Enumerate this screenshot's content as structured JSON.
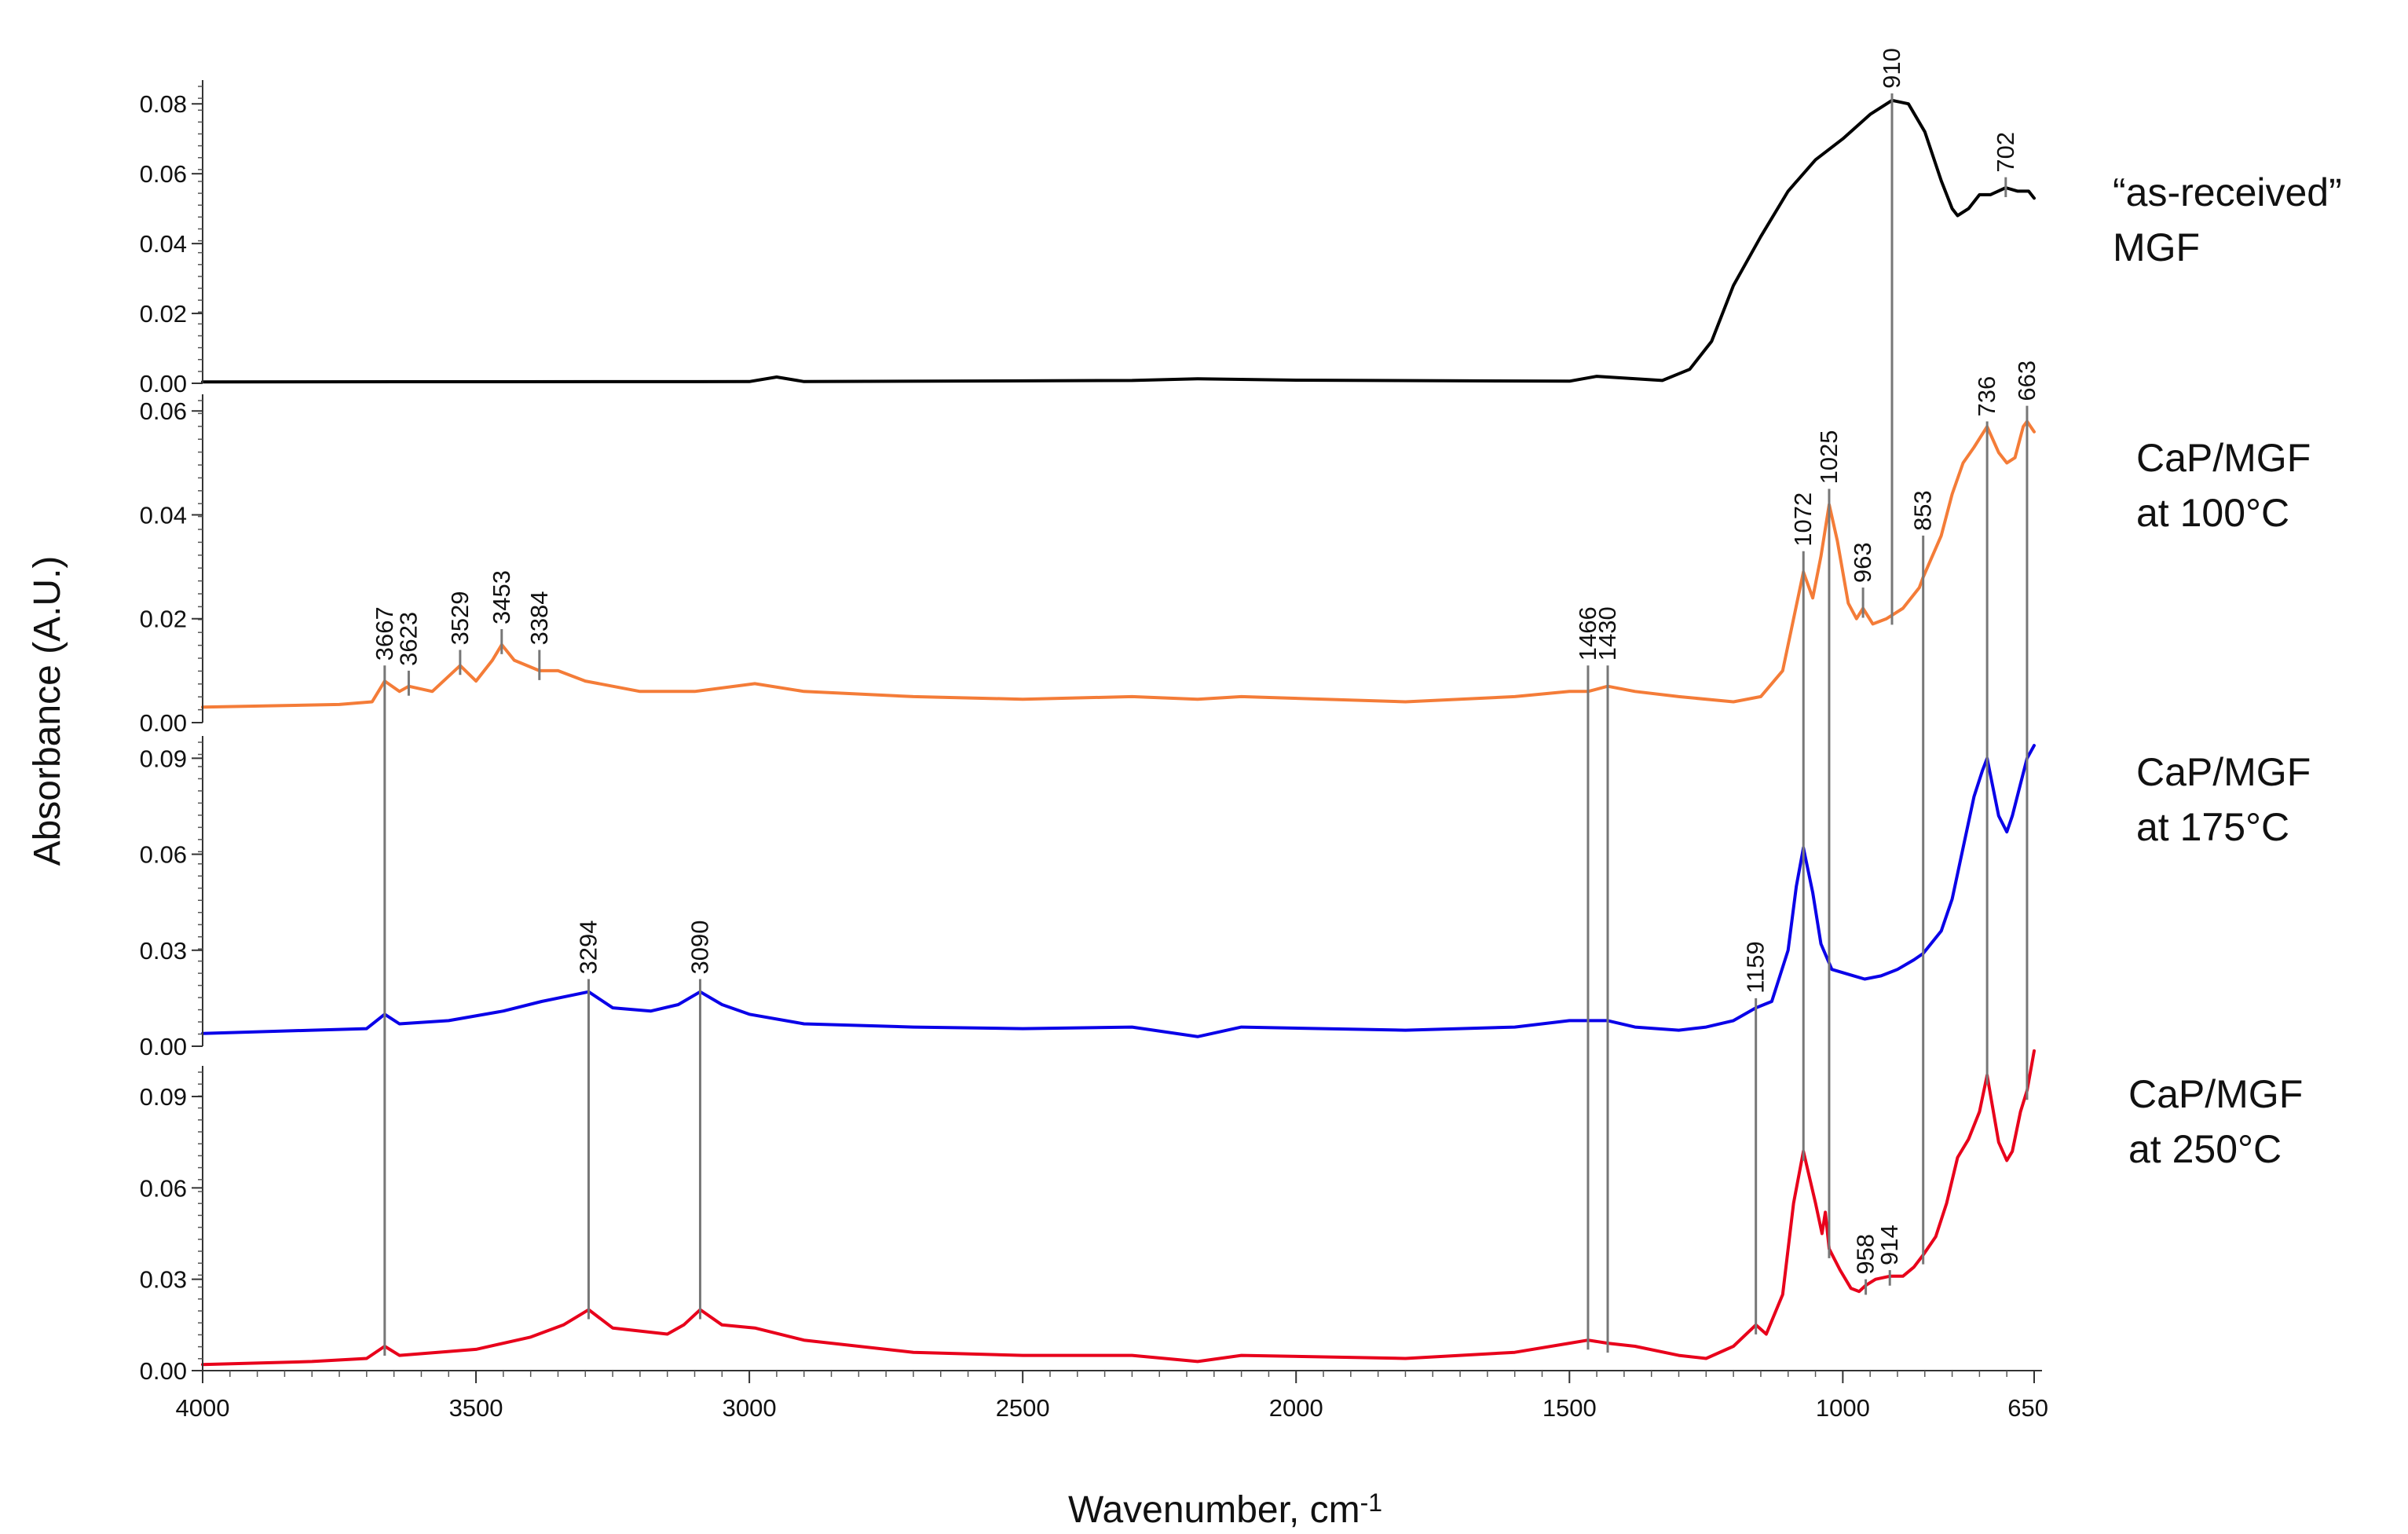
{
  "chart_data": {
    "type": "line",
    "xlabel_main": "Wavenumber,  cm",
    "xlabel_sup": "-1",
    "ylabel": "Absorbance (A.U.)",
    "xlim": [
      4000,
      650
    ],
    "x_reversed": true,
    "x_ticks": [
      4000,
      3500,
      3000,
      2500,
      2000,
      1500,
      1000,
      650
    ],
    "colors": {
      "black": "#000000",
      "orange": "#f47c38",
      "blue": "#0a00e8",
      "red": "#e8001b",
      "marker": "#777777"
    },
    "panels": [
      {
        "label_lines": [
          "“as-received”",
          "MGF"
        ],
        "color": "#000000",
        "ylim": [
          0,
          0.085
        ],
        "y_ticks": [
          "0.00",
          "0.02",
          "0.04",
          "0.06",
          "0.08"
        ],
        "points": [
          [
            4000,
            0.0004
          ],
          [
            3000,
            0.0005
          ],
          [
            2950,
            0.0018
          ],
          [
            2900,
            0.0005
          ],
          [
            2300,
            0.0008
          ],
          [
            2180,
            0.0013
          ],
          [
            2000,
            0.0009
          ],
          [
            1500,
            0.0006
          ],
          [
            1450,
            0.002
          ],
          [
            1330,
            0.0008
          ],
          [
            1280,
            0.004
          ],
          [
            1240,
            0.012
          ],
          [
            1200,
            0.028
          ],
          [
            1150,
            0.042
          ],
          [
            1100,
            0.055
          ],
          [
            1050,
            0.064
          ],
          [
            1000,
            0.07
          ],
          [
            950,
            0.077
          ],
          [
            910,
            0.081
          ],
          [
            880,
            0.08
          ],
          [
            850,
            0.072
          ],
          [
            820,
            0.058
          ],
          [
            800,
            0.05
          ],
          [
            790,
            0.048
          ],
          [
            770,
            0.05
          ],
          [
            750,
            0.054
          ],
          [
            730,
            0.054
          ],
          [
            702,
            0.056
          ],
          [
            680,
            0.055
          ],
          [
            660,
            0.055
          ],
          [
            650,
            0.053
          ]
        ]
      },
      {
        "label_lines": [
          "CaP/MGF",
          "at 100°C"
        ],
        "color": "#f47c38",
        "ylim": [
          0,
          0.062
        ],
        "y_ticks": [
          "0.00",
          "0.02",
          "0.04",
          "0.06"
        ],
        "points": [
          [
            4000,
            0.003
          ],
          [
            3750,
            0.0035
          ],
          [
            3690,
            0.004
          ],
          [
            3667,
            0.008
          ],
          [
            3640,
            0.006
          ],
          [
            3623,
            0.007
          ],
          [
            3580,
            0.006
          ],
          [
            3529,
            0.011
          ],
          [
            3500,
            0.008
          ],
          [
            3470,
            0.012
          ],
          [
            3453,
            0.015
          ],
          [
            3430,
            0.012
          ],
          [
            3384,
            0.01
          ],
          [
            3350,
            0.01
          ],
          [
            3300,
            0.008
          ],
          [
            3200,
            0.006
          ],
          [
            3100,
            0.006
          ],
          [
            2990,
            0.0075
          ],
          [
            2900,
            0.006
          ],
          [
            2700,
            0.005
          ],
          [
            2500,
            0.0045
          ],
          [
            2300,
            0.005
          ],
          [
            2180,
            0.0045
          ],
          [
            2100,
            0.005
          ],
          [
            1800,
            0.004
          ],
          [
            1600,
            0.005
          ],
          [
            1500,
            0.006
          ],
          [
            1466,
            0.006
          ],
          [
            1430,
            0.007
          ],
          [
            1380,
            0.006
          ],
          [
            1300,
            0.005
          ],
          [
            1200,
            0.004
          ],
          [
            1150,
            0.005
          ],
          [
            1110,
            0.01
          ],
          [
            1090,
            0.02
          ],
          [
            1072,
            0.029
          ],
          [
            1055,
            0.024
          ],
          [
            1040,
            0.032
          ],
          [
            1025,
            0.042
          ],
          [
            1010,
            0.035
          ],
          [
            990,
            0.023
          ],
          [
            975,
            0.02
          ],
          [
            963,
            0.022
          ],
          [
            945,
            0.019
          ],
          [
            920,
            0.02
          ],
          [
            890,
            0.022
          ],
          [
            860,
            0.026
          ],
          [
            853,
            0.028
          ],
          [
            820,
            0.036
          ],
          [
            800,
            0.044
          ],
          [
            780,
            0.05
          ],
          [
            760,
            0.053
          ],
          [
            736,
            0.057
          ],
          [
            715,
            0.052
          ],
          [
            700,
            0.05
          ],
          [
            685,
            0.051
          ],
          [
            670,
            0.057
          ],
          [
            663,
            0.058
          ],
          [
            650,
            0.056
          ]
        ]
      },
      {
        "label_lines": [
          "CaP/MGF",
          "at 175°C"
        ],
        "color": "#0a00e8",
        "ylim": [
          0,
          0.095
        ],
        "y_ticks": [
          "0.00",
          "0.03",
          "0.06",
          "0.09"
        ],
        "points": [
          [
            4000,
            0.004
          ],
          [
            3800,
            0.005
          ],
          [
            3700,
            0.0055
          ],
          [
            3667,
            0.01
          ],
          [
            3640,
            0.007
          ],
          [
            3550,
            0.008
          ],
          [
            3450,
            0.011
          ],
          [
            3380,
            0.014
          ],
          [
            3294,
            0.017
          ],
          [
            3250,
            0.012
          ],
          [
            3180,
            0.011
          ],
          [
            3130,
            0.013
          ],
          [
            3090,
            0.017
          ],
          [
            3050,
            0.013
          ],
          [
            3000,
            0.01
          ],
          [
            2900,
            0.007
          ],
          [
            2700,
            0.006
          ],
          [
            2500,
            0.0055
          ],
          [
            2300,
            0.006
          ],
          [
            2180,
            0.003
          ],
          [
            2100,
            0.006
          ],
          [
            1800,
            0.005
          ],
          [
            1600,
            0.006
          ],
          [
            1500,
            0.008
          ],
          [
            1430,
            0.008
          ],
          [
            1380,
            0.006
          ],
          [
            1300,
            0.005
          ],
          [
            1250,
            0.006
          ],
          [
            1200,
            0.008
          ],
          [
            1159,
            0.012
          ],
          [
            1130,
            0.014
          ],
          [
            1100,
            0.03
          ],
          [
            1085,
            0.05
          ],
          [
            1072,
            0.062
          ],
          [
            1055,
            0.048
          ],
          [
            1040,
            0.032
          ],
          [
            1020,
            0.024
          ],
          [
            980,
            0.022
          ],
          [
            960,
            0.021
          ],
          [
            930,
            0.022
          ],
          [
            900,
            0.024
          ],
          [
            870,
            0.027
          ],
          [
            853,
            0.029
          ],
          [
            820,
            0.036
          ],
          [
            800,
            0.046
          ],
          [
            780,
            0.062
          ],
          [
            760,
            0.078
          ],
          [
            745,
            0.086
          ],
          [
            736,
            0.09
          ],
          [
            715,
            0.072
          ],
          [
            700,
            0.067
          ],
          [
            690,
            0.072
          ],
          [
            675,
            0.082
          ],
          [
            663,
            0.09
          ],
          [
            650,
            0.094
          ]
        ]
      },
      {
        "label_lines": [
          "CaP/MGF",
          "at 250°C"
        ],
        "color": "#e8001b",
        "ylim": [
          0,
          0.098
        ],
        "y_ticks": [
          "0.00",
          "0.03",
          "0.06",
          "0.09"
        ],
        "points": [
          [
            4000,
            0.002
          ],
          [
            3800,
            0.003
          ],
          [
            3700,
            0.004
          ],
          [
            3667,
            0.008
          ],
          [
            3640,
            0.005
          ],
          [
            3500,
            0.007
          ],
          [
            3400,
            0.011
          ],
          [
            3340,
            0.015
          ],
          [
            3294,
            0.02
          ],
          [
            3250,
            0.014
          ],
          [
            3150,
            0.012
          ],
          [
            3120,
            0.015
          ],
          [
            3090,
            0.02
          ],
          [
            3050,
            0.015
          ],
          [
            2990,
            0.014
          ],
          [
            2900,
            0.01
          ],
          [
            2700,
            0.006
          ],
          [
            2500,
            0.005
          ],
          [
            2300,
            0.005
          ],
          [
            2180,
            0.003
          ],
          [
            2100,
            0.005
          ],
          [
            1800,
            0.004
          ],
          [
            1600,
            0.006
          ],
          [
            1500,
            0.009
          ],
          [
            1466,
            0.01
          ],
          [
            1430,
            0.009
          ],
          [
            1380,
            0.008
          ],
          [
            1300,
            0.005
          ],
          [
            1250,
            0.004
          ],
          [
            1200,
            0.008
          ],
          [
            1159,
            0.015
          ],
          [
            1140,
            0.012
          ],
          [
            1110,
            0.025
          ],
          [
            1090,
            0.055
          ],
          [
            1072,
            0.072
          ],
          [
            1050,
            0.055
          ],
          [
            1038,
            0.045
          ],
          [
            1032,
            0.052
          ],
          [
            1025,
            0.04
          ],
          [
            1005,
            0.033
          ],
          [
            985,
            0.027
          ],
          [
            970,
            0.026
          ],
          [
            958,
            0.028
          ],
          [
            940,
            0.03
          ],
          [
            914,
            0.031
          ],
          [
            890,
            0.031
          ],
          [
            870,
            0.034
          ],
          [
            853,
            0.038
          ],
          [
            830,
            0.044
          ],
          [
            810,
            0.055
          ],
          [
            790,
            0.07
          ],
          [
            770,
            0.076
          ],
          [
            750,
            0.085
          ],
          [
            736,
            0.097
          ],
          [
            715,
            0.075
          ],
          [
            700,
            0.069
          ],
          [
            690,
            0.072
          ],
          [
            675,
            0.085
          ],
          [
            663,
            0.092
          ],
          [
            650,
            0.105
          ]
        ]
      }
    ],
    "annotations": [
      {
        "x": 910,
        "label": "910",
        "from_panel": 0,
        "to_panel": 1,
        "label_panel": 0,
        "label_y": 0.083
      },
      {
        "x": 702,
        "label": "702",
        "from_panel": 0,
        "to_panel": 0,
        "label_panel": 0,
        "label_y": 0.059
      },
      {
        "x": 663,
        "label": "663",
        "from_panel": 1,
        "to_panel": 3,
        "label_panel": 1,
        "label_y": 0.061
      },
      {
        "x": 736,
        "label": "736",
        "from_panel": 1,
        "to_panel": 3,
        "label_panel": 1,
        "label_y": 0.058
      },
      {
        "x": 853,
        "label": "853",
        "from_panel": 1,
        "to_panel": 3,
        "label_panel": 1,
        "label_y": 0.036
      },
      {
        "x": 963,
        "label": "963",
        "from_panel": 1,
        "to_panel": 1,
        "label_panel": 1,
        "label_y": 0.026
      },
      {
        "x": 1025,
        "label": "1025",
        "from_panel": 1,
        "to_panel": 3,
        "label_panel": 1,
        "label_y": 0.045
      },
      {
        "x": 1072,
        "label": "1072",
        "from_panel": 1,
        "to_panel": 3,
        "label_panel": 1,
        "label_y": 0.033
      },
      {
        "x": 1430,
        "label": "1430",
        "from_panel": 1,
        "to_panel": 3,
        "label_panel": 1,
        "label_y": 0.011
      },
      {
        "x": 1466,
        "label": "1466",
        "from_panel": 1,
        "to_panel": 3,
        "label_panel": 1,
        "label_y": 0.011
      },
      {
        "x": 3384,
        "label": "3384",
        "from_panel": 1,
        "to_panel": 1,
        "label_panel": 1,
        "label_y": 0.014
      },
      {
        "x": 3453,
        "label": "3453",
        "from_panel": 1,
        "to_panel": 1,
        "label_panel": 1,
        "label_y": 0.018
      },
      {
        "x": 3529,
        "label": "3529",
        "from_panel": 1,
        "to_panel": 1,
        "label_panel": 1,
        "label_y": 0.014
      },
      {
        "x": 3623,
        "label": "3623",
        "from_panel": 1,
        "to_panel": 1,
        "label_panel": 1,
        "label_y": 0.01
      },
      {
        "x": 3667,
        "label": "3667",
        "from_panel": 1,
        "to_panel": 3,
        "label_panel": 1,
        "label_y": 0.011
      },
      {
        "x": 3294,
        "label": "3294",
        "from_panel": 2,
        "to_panel": 3,
        "label_panel": 2,
        "label_y": 0.021
      },
      {
        "x": 3090,
        "label": "3090",
        "from_panel": 2,
        "to_panel": 3,
        "label_panel": 2,
        "label_y": 0.021
      },
      {
        "x": 1159,
        "label": "1159",
        "from_panel": 2,
        "to_panel": 3,
        "label_panel": 2,
        "label_y": 0.015
      },
      {
        "x": 958,
        "label": "958",
        "from_panel": 3,
        "to_panel": 3,
        "label_panel": 3,
        "label_y": 0.03
      },
      {
        "x": 914,
        "label": "914",
        "from_panel": 3,
        "to_panel": 3,
        "label_panel": 3,
        "label_y": 0.033
      }
    ]
  }
}
